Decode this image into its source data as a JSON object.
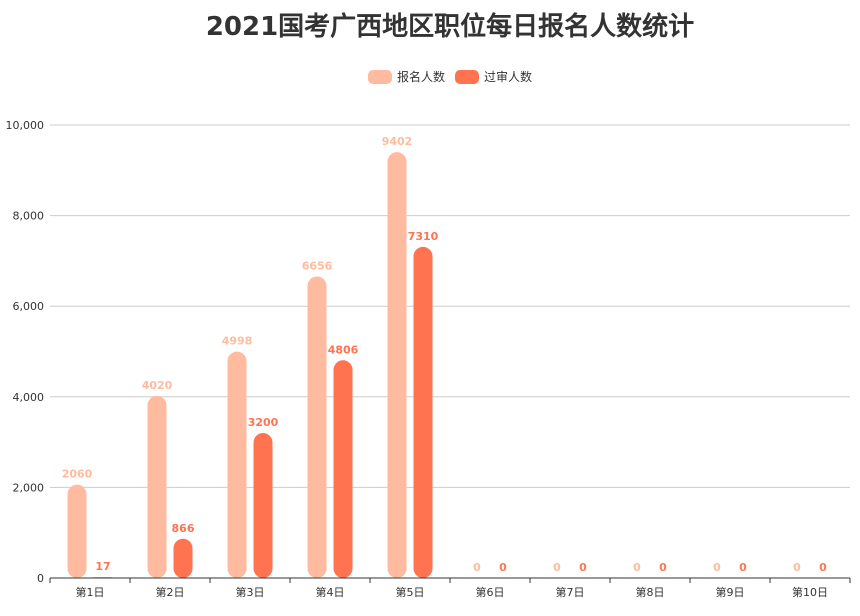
{
  "chart_data": {
    "type": "bar",
    "title": "2021国考广西地区职位每日报名人数统计",
    "categories": [
      "第1日",
      "第2日",
      "第3日",
      "第4日",
      "第5日",
      "第6日",
      "第7日",
      "第8日",
      "第9日",
      "第10日"
    ],
    "series": [
      {
        "name": "报名人数",
        "color": "#ffbb9f",
        "values": [
          2060,
          4020,
          4998,
          6656,
          9402,
          0,
          0,
          0,
          0,
          0
        ]
      },
      {
        "name": "过审人数",
        "color": "#ff7350",
        "values": [
          17,
          866,
          3200,
          4806,
          7310,
          0,
          0,
          0,
          0,
          0
        ]
      }
    ],
    "ylim": [
      0,
      10000
    ],
    "yticks": [
      0,
      2000,
      4000,
      6000,
      8000,
      10000
    ],
    "ytick_labels": [
      "0",
      "2,000",
      "4,000",
      "6,000",
      "8,000",
      "10,000"
    ],
    "grid": true,
    "legend_position": "top-right"
  }
}
